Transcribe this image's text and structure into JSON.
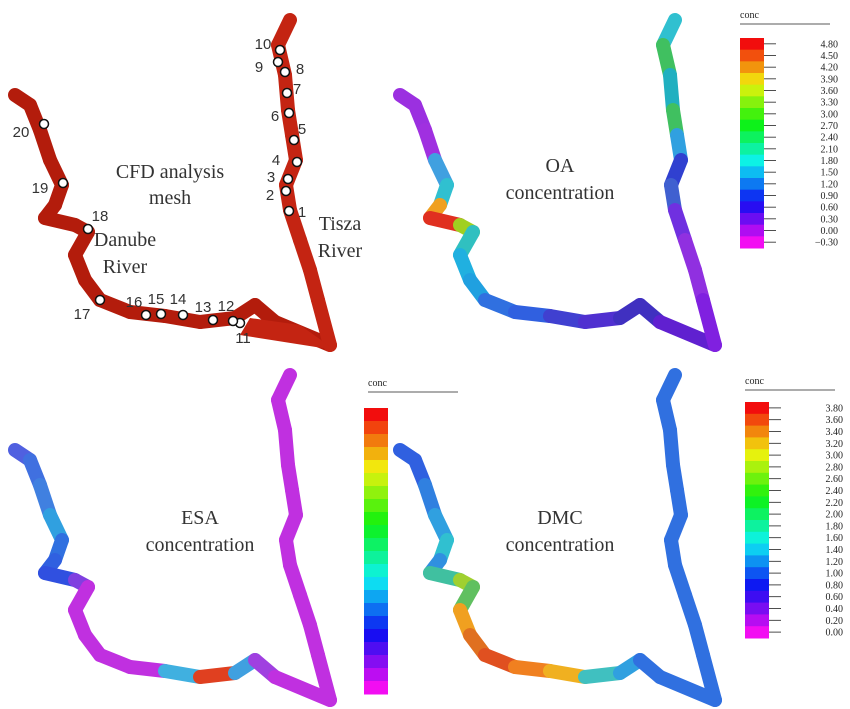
{
  "mesh": {
    "title_lines": [
      "CFD analysis",
      "mesh"
    ],
    "danube_lines": [
      "Danube",
      "River"
    ],
    "tisza_lines": [
      "Tisza",
      "River"
    ],
    "stations": [
      "1",
      "2",
      "3",
      "4",
      "5",
      "6",
      "7",
      "8",
      "9",
      "10",
      "11",
      "12",
      "13",
      "14",
      "15",
      "16",
      "17",
      "18",
      "19",
      "20"
    ]
  },
  "oa": {
    "title_lines": [
      "OA",
      "concentration"
    ],
    "colorbar": {
      "title": "conc",
      "labels": [
        "4.80",
        "4.50",
        "4.20",
        "3.90",
        "3.60",
        "3.30",
        "3.00",
        "2.70",
        "2.40",
        "2.10",
        "1.80",
        "1.50",
        "1.20",
        "0.90",
        "0.60",
        "0.30",
        "0.00",
        "−0.30"
      ]
    }
  },
  "esa": {
    "title_lines": [
      "ESA",
      "concentration"
    ],
    "colorbar": {
      "title": "conc"
    }
  },
  "dmc": {
    "title_lines": [
      "DMC",
      "concentration"
    ],
    "colorbar": {
      "title": "conc",
      "labels": [
        "3.80",
        "3.60",
        "3.40",
        "3.20",
        "3.00",
        "2.80",
        "2.60",
        "2.40",
        "2.20",
        "2.00",
        "1.80",
        "1.60",
        "1.40",
        "1.20",
        "1.00",
        "0.80",
        "0.60",
        "0.40",
        "0.20",
        "0.00"
      ]
    }
  }
}
